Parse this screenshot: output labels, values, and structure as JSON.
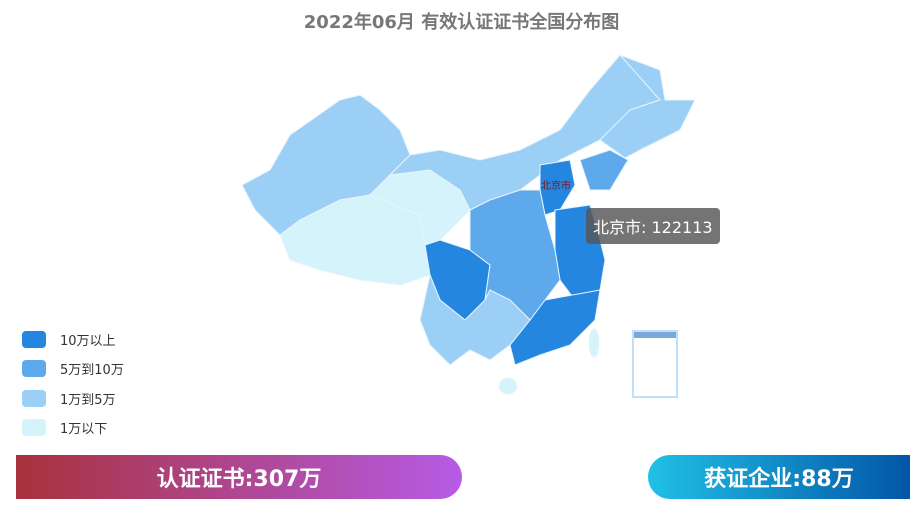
{
  "title": "2022年06月  有效认证证书全国分布图",
  "colors": {
    "level1": "#2586e0",
    "level2": "#5ea9ec",
    "level3": "#9ccff5",
    "level4": "#d4f3fb"
  },
  "legend": [
    {
      "label": "10万以上",
      "color": "#2586e0"
    },
    {
      "label": "5万到10万",
      "color": "#5ea9ec"
    },
    {
      "label": "1万到5万",
      "color": "#9ccff5"
    },
    {
      "label": "1万以下",
      "color": "#d4f3fb"
    }
  ],
  "map": {
    "highlight_label": "北京市",
    "tooltip": "北京市: 122113"
  },
  "stats": {
    "certificates": "认证证书:307万",
    "enterprises": "获证企业:88万"
  }
}
